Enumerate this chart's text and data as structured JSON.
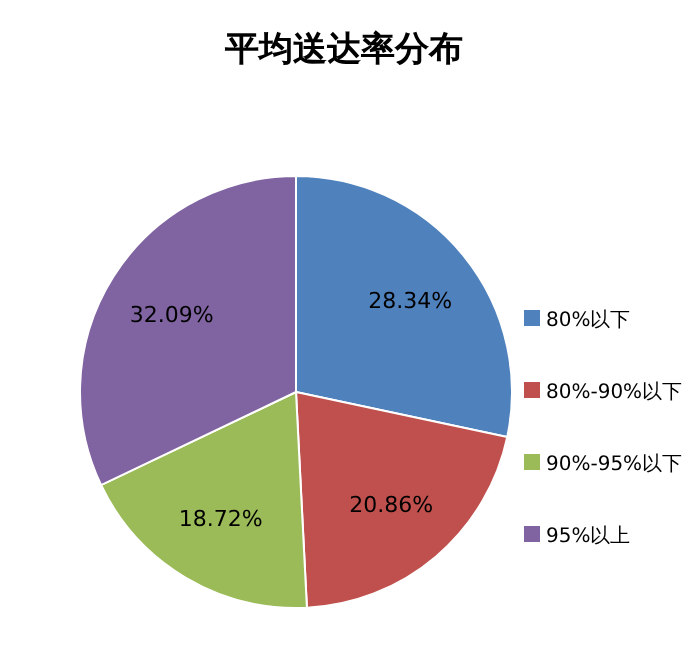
{
  "chart_data": {
    "type": "pie",
    "title": "平均送达率分布",
    "categories": [
      "80%以下",
      "80%-90%以下",
      "90%-95%以下",
      "95%以上"
    ],
    "values": [
      28.34,
      20.86,
      18.72,
      32.09
    ],
    "colors": [
      "#4f81bd",
      "#c0504d",
      "#9bbb59",
      "#8064a2"
    ],
    "value_labels": [
      "28.34%",
      "20.86%",
      "18.72%",
      "32.09%"
    ],
    "legend": "right"
  }
}
